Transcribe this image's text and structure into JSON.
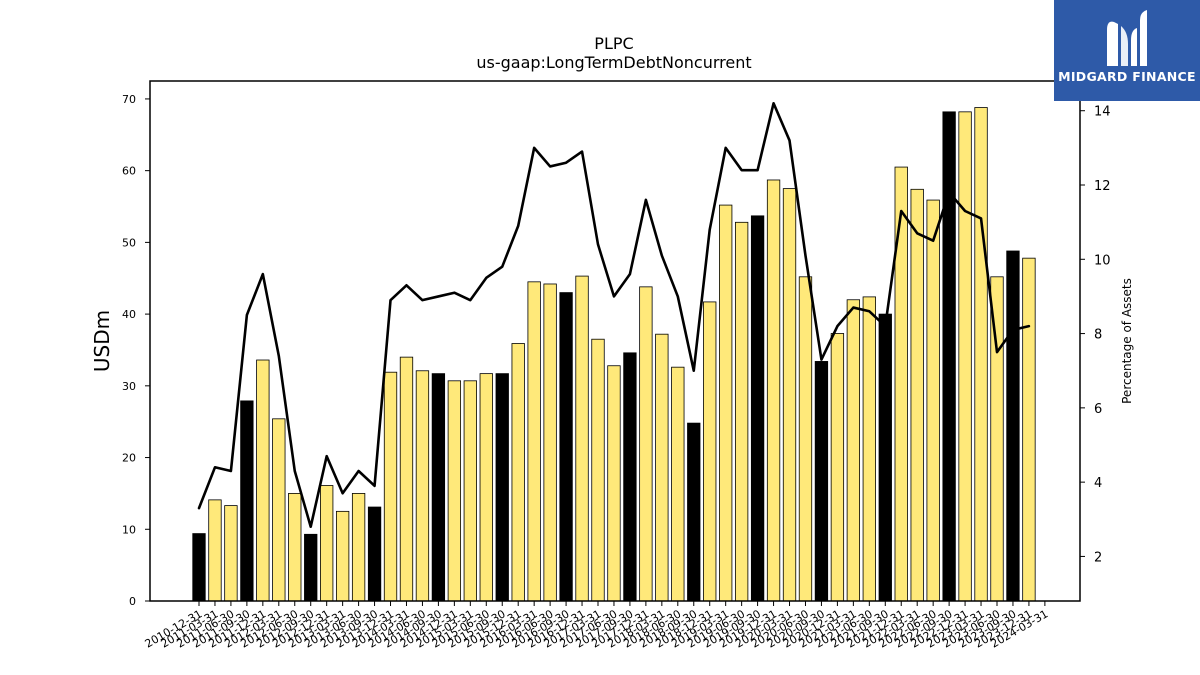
{
  "logo": {
    "text": "MIDGARD FINANCE",
    "icon": "midgard-m-logo-icon",
    "background": "#2e5aa8"
  },
  "colors": {
    "annual_bar": "#000000",
    "quarterly_bar": "#ffe97a",
    "line": "#000000"
  },
  "chart_data": {
    "type": "bar",
    "title": "PLPC",
    "subtitle": "us-gaap:LongTermDebtNoncurrent",
    "ylabel": "USDm",
    "y2label": "Percentage of Assets",
    "ylim": [
      0,
      72.5
    ],
    "y2lim": [
      0.8,
      14.8
    ],
    "yticks": [
      0,
      10,
      20,
      30,
      40,
      50,
      60,
      70
    ],
    "y2ticks": [
      2,
      4,
      6,
      8,
      10,
      12,
      14
    ],
    "categories": [
      "2010-12-31",
      "2011-03-31",
      "2011-06-30",
      "2011-09-30",
      "2011-12-31",
      "2012-03-31",
      "2012-06-30",
      "2012-09-30",
      "2012-12-31",
      "2013-03-31",
      "2013-06-30",
      "2013-09-30",
      "2013-12-31",
      "2014-03-31",
      "2014-06-30",
      "2014-09-30",
      "2014-12-31",
      "2015-03-31",
      "2015-06-30",
      "2015-09-30",
      "2015-12-31",
      "2016-03-31",
      "2016-06-30",
      "2016-09-30",
      "2016-12-31",
      "2017-03-31",
      "2017-06-30",
      "2017-09-30",
      "2017-12-31",
      "2018-03-31",
      "2018-06-30",
      "2018-09-30",
      "2018-12-31",
      "2019-03-31",
      "2019-06-30",
      "2019-09-30",
      "2019-12-31",
      "2020-03-31",
      "2020-06-30",
      "2020-09-30",
      "2020-12-31",
      "2021-03-31",
      "2021-06-30",
      "2021-09-30",
      "2021-12-31",
      "2022-03-31",
      "2022-06-30",
      "2022-09-30",
      "2022-12-31",
      "2023-03-31",
      "2023-06-30",
      "2023-09-30",
      "2023-12-31",
      "2024-03-31"
    ],
    "xtick_labels": [
      "2010-12-31",
      "2011-03-31",
      "2011-06-30",
      "2011-09-30",
      "2011-12-31",
      "2012-03-31",
      "2012-06-30",
      "2012-09-30",
      "2012-12-31",
      "2013-03-31",
      "2013-06-30",
      "2013-09-30",
      "2013-12-31",
      "2014-03-31",
      "2014-06-30",
      "2014-09-30",
      "2014-12-31",
      "2015-03-31",
      "2015-06-30",
      "2015-09-30",
      "2015-12-31",
      "2016-03-31",
      "2016-06-30",
      "2016-09-30",
      "2016-12-31",
      "2017-03-31",
      "2017-06-30",
      "2017-09-30",
      "2017-12-31",
      "2018-03-31",
      "2018-06-30",
      "2018-09-30",
      "2018-12-31",
      "2019-03-31",
      "2019-06-30",
      "2019-09-30",
      "2019-12-31",
      "2020-03-31",
      "2020-06-30",
      "2020-09-30",
      "2020-12-31",
      "2021-03-31",
      "2021-06-30",
      "2021-09-30",
      "2021-12-31",
      "2022-03-31",
      "2022-06-30",
      "2022-09-30",
      "2022-12-31",
      "2023-03-31",
      "2023-06-30",
      "2023-09-30",
      "2023-12-31",
      "2024-03-31"
    ],
    "annual": [
      true,
      false,
      false,
      true,
      false,
      false,
      false,
      true,
      false,
      false,
      false,
      true,
      false,
      false,
      false,
      true,
      false,
      false,
      false,
      true,
      false,
      false,
      false,
      true,
      false,
      false,
      false,
      true,
      false,
      false,
      false,
      true,
      false,
      false,
      false,
      true,
      false,
      false,
      false,
      true,
      false,
      false,
      false,
      true,
      false,
      false,
      false,
      true,
      false,
      false,
      false,
      true,
      false,
      false
    ],
    "series": [
      {
        "type": "bar",
        "values": [
          9.4,
          14.1,
          13.3,
          27.9,
          33.6,
          25.4,
          15.0,
          9.3,
          16.1,
          12.5,
          15.0,
          13.1,
          31.9,
          34.0,
          32.1,
          31.7,
          30.7,
          30.7,
          31.7,
          31.7,
          35.9,
          44.5,
          44.2,
          43.0,
          45.3,
          36.5,
          32.8,
          34.6,
          43.8,
          37.2,
          32.6,
          24.8,
          41.7,
          55.2,
          52.8,
          53.7,
          58.7,
          57.5,
          45.2,
          33.4,
          37.3,
          42.0,
          42.4,
          40.0,
          60.5,
          57.4,
          55.9,
          68.2,
          68.2,
          68.8,
          45.2,
          48.8,
          47.8,
          null
        ]
      },
      {
        "type": "line",
        "axis": "right",
        "values": [
          3.3,
          4.4,
          4.3,
          8.5,
          9.6,
          7.4,
          4.3,
          2.8,
          4.7,
          3.7,
          4.3,
          3.9,
          8.9,
          9.3,
          8.9,
          9.0,
          9.1,
          8.9,
          9.5,
          9.8,
          10.9,
          13.0,
          12.5,
          12.6,
          12.9,
          10.4,
          9.0,
          9.6,
          11.6,
          10.1,
          9.0,
          7.0,
          10.8,
          13.0,
          12.4,
          12.4,
          14.2,
          13.2,
          10.1,
          7.3,
          8.2,
          8.7,
          8.6,
          8.2,
          11.3,
          10.7,
          10.5,
          11.8,
          11.3,
          11.1,
          7.5,
          8.1,
          8.2,
          null
        ]
      }
    ],
    "grid": false
  }
}
